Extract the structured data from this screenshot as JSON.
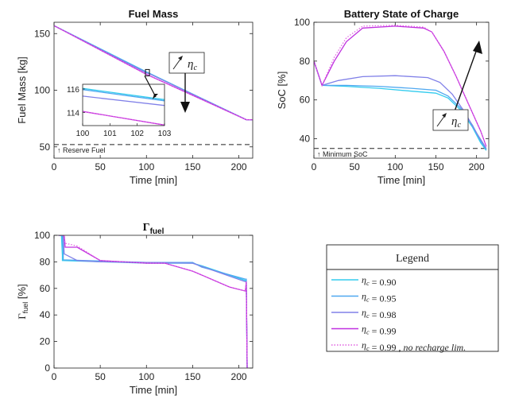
{
  "chart_data": [
    {
      "id": "fuel",
      "type": "line",
      "title": "Fuel Mass",
      "xlabel": "Time [min]",
      "ylabel": "Fuel Mass [kg]",
      "xlim": [
        0,
        215
      ],
      "ylim": [
        40,
        160
      ],
      "xticks": [
        0,
        50,
        100,
        150,
        200
      ],
      "yticks": [
        50,
        100,
        150
      ],
      "reference_line": {
        "y": 52,
        "label": "↑ Reserve Fuel"
      },
      "annotation": "↗ η_c",
      "series": [
        {
          "name": "η_c = 0.90",
          "color": "#33ccee",
          "style": "solid",
          "x": [
            0,
            100,
            103,
            208,
            215
          ],
          "y": [
            157,
            116.2,
            115.0,
            74,
            74
          ]
        },
        {
          "name": "η_c = 0.95",
          "color": "#4fa8f0",
          "style": "solid",
          "x": [
            0,
            100,
            103,
            208,
            215
          ],
          "y": [
            157,
            116.0,
            114.8,
            74,
            74
          ]
        },
        {
          "name": "η_c = 0.98",
          "color": "#8080e8",
          "style": "solid",
          "x": [
            0,
            100,
            103,
            208,
            215
          ],
          "y": [
            157,
            115.3,
            114.6,
            74,
            74
          ]
        },
        {
          "name": "η_c = 0.99",
          "color": "#c030e0",
          "style": "solid",
          "x": [
            0,
            100,
            103,
            208,
            215
          ],
          "y": [
            157,
            114.0,
            112.9,
            74,
            74
          ]
        },
        {
          "name": "η_c = 0.99",
          "color": "#e060e0",
          "style": "dotted",
          "x": [
            0,
            100,
            103,
            208,
            215
          ],
          "y": [
            157,
            114.0,
            112.9,
            74,
            74
          ]
        }
      ],
      "inset": {
        "xlim": [
          100,
          103
        ],
        "ylim": [
          112.9,
          116.4
        ],
        "xticks": [
          100,
          101,
          102,
          103
        ],
        "yticks": [
          114,
          116
        ],
        "series": [
          {
            "color": "#33ccee",
            "style": "solid",
            "x": [
              100,
              103
            ],
            "y": [
              116.05,
              115.1
            ]
          },
          {
            "color": "#4fa8f0",
            "style": "solid",
            "x": [
              100,
              103
            ],
            "y": [
              115.95,
              115.0
            ]
          },
          {
            "color": "#8080e8",
            "style": "solid",
            "x": [
              100,
              103
            ],
            "y": [
              115.4,
              114.6
            ]
          },
          {
            "color": "#c030e0",
            "style": "solid",
            "x": [
              100,
              103
            ],
            "y": [
              114.1,
              112.95
            ]
          },
          {
            "color": "#e060e0",
            "style": "dotted",
            "x": [
              100,
              103
            ],
            "y": [
              114.1,
              112.95
            ]
          }
        ]
      }
    },
    {
      "id": "soc",
      "type": "line",
      "title": "Battery State of Charge",
      "xlabel": "Time [min]",
      "ylabel": "SoC [%]",
      "xlim": [
        0,
        215
      ],
      "ylim": [
        30,
        100
      ],
      "xticks": [
        0,
        50,
        100,
        150,
        200
      ],
      "yticks": [
        40,
        60,
        80,
        100
      ],
      "reference_line": {
        "y": 35,
        "label": "↑ Minimum SoC"
      },
      "annotation": "↗ η_c",
      "series": [
        {
          "name": "η_c = 0.90",
          "color": "#33ccee",
          "style": "solid",
          "x": [
            0,
            10,
            40,
            80,
            120,
            150,
            165,
            180,
            195,
            205,
            212
          ],
          "y": [
            80,
            67.5,
            67,
            66,
            64.5,
            63.5,
            61,
            55,
            46,
            38,
            34
          ]
        },
        {
          "name": "η_c = 0.95",
          "color": "#4fa8f0",
          "style": "solid",
          "x": [
            0,
            10,
            40,
            80,
            120,
            150,
            165,
            180,
            195,
            205,
            212
          ],
          "y": [
            80,
            67.5,
            67.5,
            67,
            66,
            65,
            62,
            56,
            47,
            39,
            34.5
          ]
        },
        {
          "name": "η_c = 0.98",
          "color": "#8080e8",
          "style": "solid",
          "x": [
            0,
            10,
            30,
            60,
            100,
            140,
            155,
            170,
            185,
            200,
            212
          ],
          "y": [
            80,
            67.5,
            70,
            72,
            72.5,
            71.5,
            69,
            63,
            54,
            43,
            35
          ]
        },
        {
          "name": "η_c = 0.99",
          "color": "#c030e0",
          "style": "solid",
          "x": [
            0,
            10,
            25,
            40,
            60,
            100,
            135,
            145,
            160,
            175,
            190,
            205,
            212
          ],
          "y": [
            80,
            67.5,
            80,
            90,
            97,
            98,
            97,
            95,
            85,
            72,
            58,
            44,
            36
          ]
        },
        {
          "name": "η_c = 0.99",
          "color": "#e060e0",
          "style": "dotted",
          "x": [
            0,
            10,
            25,
            40,
            60,
            100,
            135,
            145,
            160,
            175,
            190,
            205,
            212
          ],
          "y": [
            80,
            67.5,
            82,
            92,
            98,
            98.5,
            97.5,
            95,
            85,
            72,
            58,
            44,
            36
          ]
        }
      ]
    },
    {
      "id": "gamma",
      "type": "line",
      "title": "Γ",
      "title_subscript": "fuel",
      "xlabel": "Time [min]",
      "ylabel": "Γ",
      "ylabel_subscript": "fuel",
      "ylabel_unit": "[%]",
      "xlim": [
        0,
        215
      ],
      "ylim": [
        0,
        100
      ],
      "xticks": [
        0,
        50,
        100,
        150,
        200
      ],
      "yticks": [
        0,
        20,
        40,
        60,
        80,
        100
      ],
      "series": [
        {
          "name": "η_c = 0.90",
          "color": "#33ccee",
          "style": "solid",
          "x": [
            5,
            8,
            9,
            9,
            100,
            150,
            160,
            207,
            208,
            209,
            210
          ],
          "y": [
            100,
            100,
            85,
            81,
            79,
            79,
            77,
            66,
            66,
            0,
            0
          ]
        },
        {
          "name": "η_c = 0.95",
          "color": "#4fa8f0",
          "style": "solid",
          "x": [
            5,
            9,
            10,
            10,
            100,
            150,
            160,
            207,
            208,
            209,
            210
          ],
          "y": [
            100,
            100,
            86,
            81.5,
            79.5,
            79.5,
            76,
            67,
            67,
            0,
            0
          ]
        },
        {
          "name": "η_c = 0.98",
          "color": "#8080e8",
          "style": "solid",
          "x": [
            5,
            10,
            11,
            25,
            50,
            100,
            150,
            207,
            208,
            209,
            210
          ],
          "y": [
            100,
            100,
            86,
            81,
            80,
            79.5,
            79,
            65,
            65,
            0,
            0
          ]
        },
        {
          "name": "η_c = 0.99",
          "color": "#c030e0",
          "style": "solid",
          "x": [
            5,
            11,
            12,
            25,
            50,
            100,
            120,
            150,
            170,
            190,
            207,
            208,
            209,
            210
          ],
          "y": [
            100,
            100,
            91,
            91,
            81,
            79,
            79,
            73,
            67,
            61,
            58,
            65,
            0,
            0
          ]
        },
        {
          "name": "η_c = 0.99",
          "color": "#e060e0",
          "style": "dotted",
          "x": [
            5,
            11,
            12,
            25,
            50,
            100,
            120,
            150,
            170,
            190,
            207,
            208,
            209,
            210
          ],
          "y": [
            100,
            100,
            94,
            92,
            81,
            79,
            79,
            73,
            67,
            61,
            58,
            65,
            0,
            0
          ]
        }
      ]
    }
  ],
  "legend": {
    "title": "Legend",
    "entries": [
      {
        "label": "η_c = 0.90",
        "color": "#33ccee",
        "style": "solid"
      },
      {
        "label": "η_c = 0.95",
        "color": "#4fa8f0",
        "style": "solid"
      },
      {
        "label": "η_c = 0.98",
        "color": "#8080e8",
        "style": "solid"
      },
      {
        "label": "η_c = 0.99",
        "color": "#c030e0",
        "style": "solid"
      },
      {
        "label": "η_c = 0.99 , no recharge lim.",
        "color": "#e060e0",
        "style": "dotted"
      }
    ]
  }
}
